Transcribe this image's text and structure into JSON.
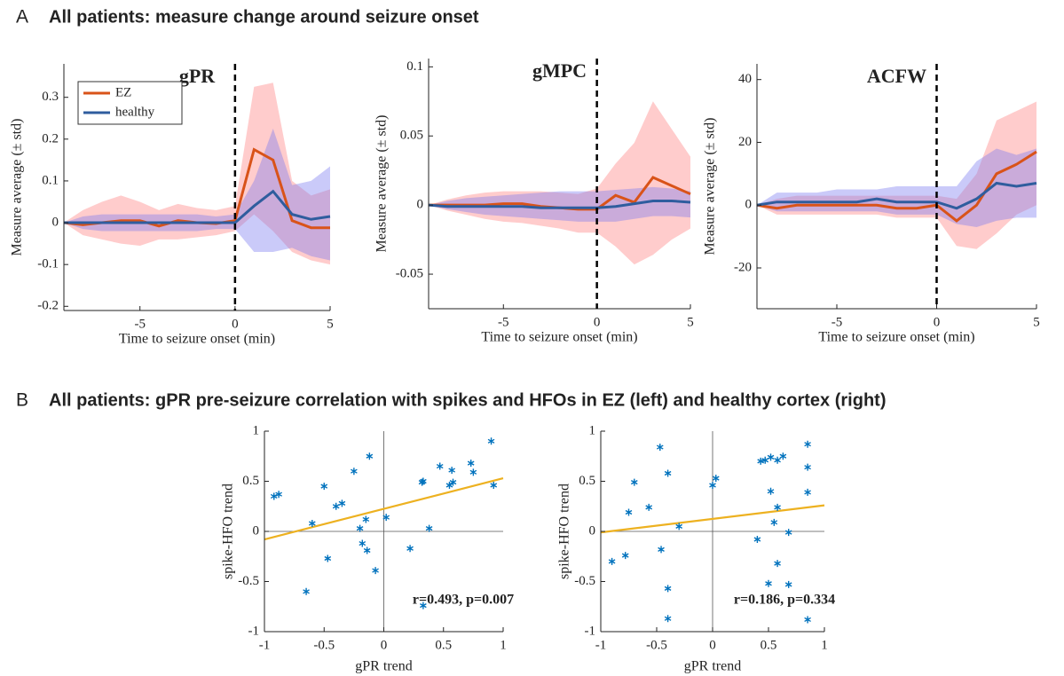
{
  "panels": [
    {
      "letter": "A",
      "title": "All patients: measure change around seizure onset"
    },
    {
      "letter": "B",
      "title": "All patients: gPR pre-seizure correlation with spikes and HFOs in EZ (left) and healthy cortex (right)"
    }
  ],
  "chart_data": [
    {
      "type": "line",
      "title": "gPR",
      "xlabel": "Time to seizure onset (min)",
      "ylabel": "Measure average (± std)",
      "x": [
        -9,
        -8,
        -7,
        -6,
        -5,
        -4,
        -3,
        -2,
        -1,
        0,
        1,
        2,
        3,
        4,
        5
      ],
      "xlim": [
        -9,
        5
      ],
      "xticks": [
        -5,
        0,
        5
      ],
      "ylim": [
        -0.21,
        0.38
      ],
      "yticks": [
        -0.2,
        -0.1,
        0,
        0.1,
        0.2,
        0.3
      ],
      "onset": 0,
      "legend": "upper left",
      "series": [
        {
          "name": "EZ",
          "color": "#D95319",
          "band_color": "#FF8080",
          "values": [
            0,
            -0.005,
            0,
            0.005,
            0.005,
            -0.008,
            0.005,
            0,
            -0.002,
            0.005,
            0.175,
            0.15,
            0.005,
            -0.012,
            -0.012
          ],
          "upper": [
            0,
            0.03,
            0.05,
            0.065,
            0.05,
            0.03,
            0.045,
            0.035,
            0.03,
            0.04,
            0.325,
            0.335,
            0.1,
            0.065,
            0.08
          ],
          "lower": [
            0,
            -0.03,
            -0.04,
            -0.05,
            -0.055,
            -0.04,
            -0.04,
            -0.035,
            -0.03,
            -0.02,
            0.02,
            -0.02,
            -0.07,
            -0.09,
            -0.1
          ]
        },
        {
          "name": "healthy",
          "color": "#2F5D9E",
          "band_color": "#7B7BF0",
          "values": [
            0,
            0,
            0,
            0,
            0,
            0,
            0,
            0,
            0,
            0,
            0.04,
            0.075,
            0.02,
            0.008,
            0.015
          ],
          "upper": [
            0,
            0.015,
            0.02,
            0.02,
            0.02,
            0.02,
            0.02,
            0.02,
            0.015,
            0.02,
            0.1,
            0.225,
            0.09,
            0.1,
            0.135
          ],
          "lower": [
            0,
            -0.015,
            -0.02,
            -0.02,
            -0.02,
            -0.02,
            -0.02,
            -0.02,
            -0.015,
            -0.015,
            -0.07,
            -0.07,
            -0.06,
            -0.08,
            -0.09
          ]
        }
      ]
    },
    {
      "type": "line",
      "title": "gMPC",
      "xlabel": "Time to seizure onset (min)",
      "ylabel": "Measure average (± std)",
      "x": [
        -9,
        -8,
        -7,
        -6,
        -5,
        -4,
        -3,
        -2,
        -1,
        0,
        1,
        2,
        3,
        4,
        5
      ],
      "xlim": [
        -9,
        5
      ],
      "xticks": [
        -5,
        0,
        5
      ],
      "ylim": [
        -0.075,
        0.106
      ],
      "yticks": [
        -0.05,
        0,
        0.05,
        0.1
      ],
      "onset": 0,
      "series": [
        {
          "color": "#D95319",
          "band_color": "#FF8080",
          "values": [
            0,
            0,
            0,
            0,
            0.001,
            0.001,
            -0.001,
            -0.002,
            -0.003,
            -0.003,
            0.007,
            0.002,
            0.02,
            0.014,
            0.008
          ],
          "upper": [
            0,
            0.004,
            0.007,
            0.009,
            0.01,
            0.01,
            0.01,
            0.009,
            0.008,
            0.012,
            0.03,
            0.045,
            0.075,
            0.055,
            0.035
          ],
          "lower": [
            0,
            -0.004,
            -0.007,
            -0.01,
            -0.012,
            -0.013,
            -0.015,
            -0.017,
            -0.02,
            -0.02,
            -0.03,
            -0.043,
            -0.036,
            -0.025,
            -0.017
          ]
        },
        {
          "color": "#2F5D9E",
          "band_color": "#7B7BF0",
          "values": [
            0,
            -0.001,
            -0.001,
            -0.001,
            -0.001,
            -0.001,
            -0.002,
            -0.002,
            -0.002,
            -0.002,
            -0.001,
            0.001,
            0.003,
            0.003,
            0.002
          ],
          "upper": [
            0,
            0.003,
            0.005,
            0.006,
            0.007,
            0.008,
            0.009,
            0.01,
            0.01,
            0.01,
            0.011,
            0.012,
            0.013,
            0.012,
            0.01
          ],
          "lower": [
            0,
            -0.003,
            -0.005,
            -0.007,
            -0.008,
            -0.009,
            -0.01,
            -0.011,
            -0.012,
            -0.012,
            -0.012,
            -0.01,
            -0.008,
            -0.008,
            -0.009
          ]
        }
      ]
    },
    {
      "type": "line",
      "title": "ACFW",
      "xlabel": "Time to seizure onset (min)",
      "ylabel": "Measure average (± std)",
      "x": [
        -9,
        -8,
        -7,
        -6,
        -5,
        -4,
        -3,
        -2,
        -1,
        0,
        1,
        2,
        3,
        4,
        5
      ],
      "xlim": [
        -9,
        5
      ],
      "xticks": [
        -5,
        0,
        5
      ],
      "ylim": [
        -33,
        45
      ],
      "yticks": [
        -20,
        0,
        20,
        40
      ],
      "onset": 0,
      "series": [
        {
          "color": "#D95319",
          "band_color": "#FF8080",
          "values": [
            0,
            -1,
            0,
            0,
            0,
            0,
            0,
            -1,
            -1,
            0,
            -5,
            0,
            10,
            13,
            17
          ],
          "upper": [
            0,
            2,
            3,
            3,
            3,
            3,
            3,
            3,
            3,
            3,
            2,
            10,
            27,
            30,
            33
          ],
          "lower": [
            0,
            -3,
            -3,
            -3,
            -3,
            -3,
            -3,
            -4,
            -4,
            -4,
            -13,
            -14,
            -9,
            -3,
            0
          ]
        },
        {
          "color": "#2F5D9E",
          "band_color": "#7B7BF0",
          "values": [
            0,
            1,
            1,
            1,
            1,
            1,
            2,
            1,
            1,
            1,
            -1,
            2,
            7,
            6,
            7
          ],
          "upper": [
            0,
            4,
            4,
            4,
            5,
            5,
            5,
            6,
            6,
            6,
            6,
            14,
            18,
            16,
            18
          ],
          "lower": [
            0,
            -2,
            -2,
            -2,
            -2,
            -2,
            -2,
            -3,
            -3,
            -3,
            -6,
            -7,
            -5,
            -4,
            -4
          ]
        }
      ]
    },
    {
      "type": "scatter",
      "xlabel": "gPR trend",
      "ylabel": "spike-HFO trend",
      "color": "#0072BD",
      "x": [
        -0.92,
        -0.88,
        -0.65,
        -0.6,
        -0.5,
        -0.47,
        -0.4,
        -0.35,
        -0.25,
        -0.2,
        -0.18,
        -0.15,
        -0.14,
        -0.12,
        -0.07,
        0.02,
        0.22,
        0.32,
        0.33,
        0.38,
        0.33,
        0.47,
        0.55,
        0.58,
        0.57,
        0.73,
        0.75,
        0.9,
        0.92
      ],
      "y": [
        0.35,
        0.37,
        -0.6,
        0.08,
        0.45,
        -0.27,
        0.25,
        0.28,
        0.6,
        0.03,
        -0.12,
        0.12,
        -0.19,
        0.75,
        -0.39,
        0.14,
        -0.17,
        0.49,
        0.5,
        0.03,
        -0.74,
        0.65,
        0.46,
        0.49,
        0.61,
        0.68,
        0.59,
        0.9,
        0.46
      ],
      "fit_x": [
        -1,
        1
      ],
      "fit_y": [
        -0.08,
        0.53
      ],
      "fit_color": "#EDB120",
      "annotation": "r=0.493, p=0.007",
      "xlim": [
        -1,
        1
      ],
      "xticks": [
        -1,
        -0.5,
        0,
        0.5,
        1
      ],
      "ylim": [
        -1,
        1
      ],
      "yticks": [
        -1,
        -0.5,
        0,
        0.5,
        1
      ]
    },
    {
      "type": "scatter",
      "xlabel": "gPR trend",
      "ylabel": "spike-HFO trend",
      "color": "#0072BD",
      "x": [
        -0.9,
        -0.78,
        -0.75,
        -0.7,
        -0.57,
        -0.47,
        -0.46,
        -0.4,
        -0.4,
        -0.4,
        -0.3,
        0,
        0.03,
        0.4,
        0.43,
        0.47,
        0.5,
        0.52,
        0.52,
        0.55,
        0.58,
        0.58,
        0.58,
        0.63,
        0.68,
        0.68,
        0.85,
        0.85,
        0.85,
        0.85
      ],
      "y": [
        -0.3,
        -0.24,
        0.19,
        0.49,
        0.24,
        0.84,
        -0.18,
        0.58,
        -0.57,
        -0.87,
        0.05,
        0.46,
        0.53,
        -0.08,
        0.7,
        0.71,
        -0.52,
        0.74,
        0.4,
        0.09,
        0.71,
        0.24,
        -0.32,
        0.75,
        -0.53,
        -0.01,
        0.87,
        0.64,
        0.39,
        -0.88
      ],
      "fit_x": [
        -1,
        1
      ],
      "fit_y": [
        -0.01,
        0.26
      ],
      "fit_color": "#EDB120",
      "annotation": "r=0.186, p=0.334",
      "xlim": [
        -1,
        1
      ],
      "xticks": [
        -1,
        -0.5,
        0,
        0.5,
        1
      ],
      "ylim": [
        -1,
        1
      ],
      "yticks": [
        -1,
        -0.5,
        0,
        0.5,
        1
      ]
    }
  ]
}
